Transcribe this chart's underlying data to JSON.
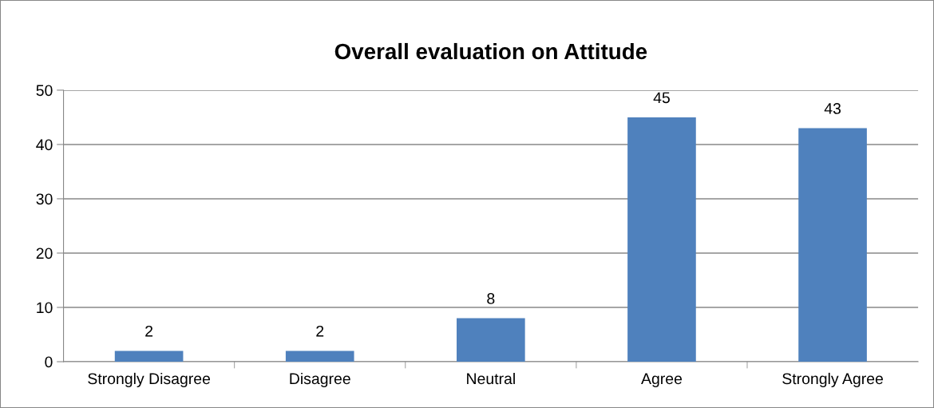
{
  "chart_data": {
    "type": "bar",
    "title": "Overall evaluation on Attitude",
    "categories": [
      "Strongly Disagree",
      "Disagree",
      "Neutral",
      "Agree",
      "Strongly Agree"
    ],
    "values": [
      2,
      2,
      8,
      45,
      43
    ],
    "color": "#4f81bd",
    "ylim": [
      0,
      50
    ],
    "yticks": [
      0,
      10,
      20,
      30,
      40,
      50
    ],
    "grid": "y",
    "data_labels": true,
    "legend": false
  }
}
